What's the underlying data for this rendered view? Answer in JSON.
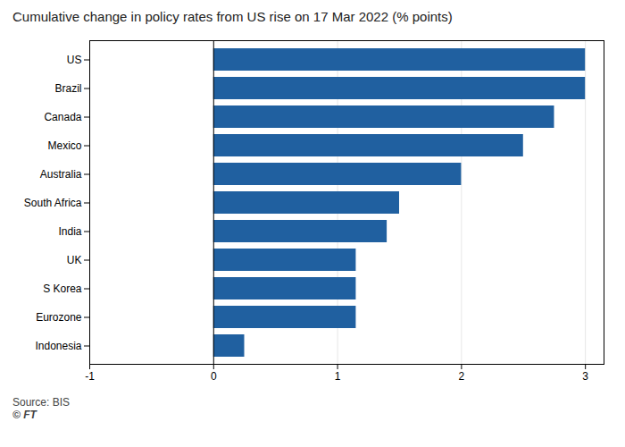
{
  "chart_data": {
    "type": "bar",
    "orientation": "horizontal",
    "title": "Cumulative change in policy rates from US rise on 17 Mar 2022 (% points)",
    "categories": [
      "US",
      "Brazil",
      "Canada",
      "Mexico",
      "Australia",
      "South Africa",
      "India",
      "UK",
      "S Korea",
      "Eurozone",
      "Indonesia"
    ],
    "values": [
      3.0,
      3.0,
      2.75,
      2.5,
      2.0,
      1.5,
      1.4,
      1.15,
      1.15,
      1.15,
      0.25
    ],
    "color": "#2060a0",
    "xlim": [
      -1,
      3.15
    ],
    "xticks": [
      -1,
      0,
      1,
      2,
      3
    ],
    "grid": true,
    "source": "Source: BIS",
    "footer": "© FT"
  }
}
